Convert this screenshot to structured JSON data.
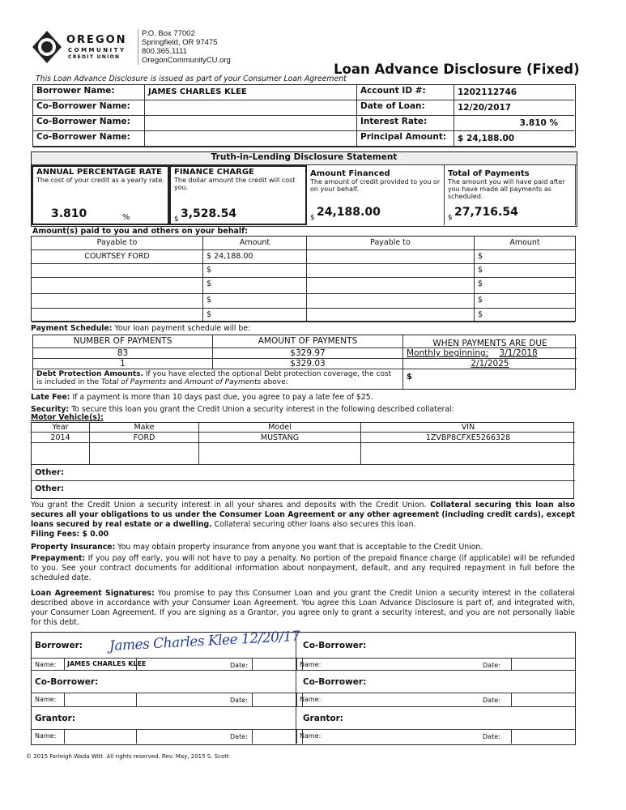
{
  "header": {
    "logo": {
      "line1": "OREGON",
      "line2": "COMMUNITY",
      "line3": "CREDIT UNION"
    },
    "address": [
      "P.O. Box 77002",
      "Springfield, OR 97475",
      "800.365.1111",
      "OregonCommunityCU.org"
    ],
    "title": "Loan Advance Disclosure (Fixed)",
    "subtitle": "This Loan Advance Disclosure is issued as part of your Consumer Loan Agreement"
  },
  "borrower": {
    "labels": [
      "Borrower Name:",
      "Co-Borrower Name:",
      "Co-Borrower Name:",
      "Co-Borrower Name:"
    ],
    "values": [
      "JAMES CHARLES KLEE",
      "",
      "",
      ""
    ],
    "right_labels": [
      "Account ID #:",
      "Date of Loan:",
      "Interest Rate:",
      "Principal Amount:"
    ],
    "right_values": [
      "1202112746",
      "12/20/2017",
      "3.810 %",
      "$ 24,188.00"
    ]
  },
  "til": {
    "title": "Truth-in-Lending Disclosure Statement",
    "boxes": [
      {
        "head": "ANNUAL PERCENTAGE RATE",
        "desc": "The cost of your credit as a yearly rate.",
        "value": "3.810",
        "unit": "%"
      },
      {
        "head": "FINANCE CHARGE",
        "desc": "The dollar amount the credit will cost you.",
        "value": "3,528.54",
        "unit": "$"
      },
      {
        "head": "Amount Financed",
        "desc": "The amount of credit provided to you or on your behalf.",
        "value": "24,188.00",
        "unit": "$"
      },
      {
        "head": "Total of Payments",
        "desc": "The amount you will have paid after you have made all payments as scheduled.",
        "value": "27,716.54",
        "unit": "$"
      }
    ]
  },
  "paid": {
    "label": "Amount(s) paid to you and others on your behalf:",
    "headers": [
      "Payable to",
      "Amount",
      "Payable to",
      "Amount"
    ],
    "rows": [
      [
        "COURTSEY FORD",
        "$ 24,188.00",
        "",
        "$"
      ],
      [
        "",
        "$",
        "",
        "$"
      ],
      [
        "",
        "$",
        "",
        "$"
      ],
      [
        "",
        "$",
        "",
        "$"
      ],
      [
        "",
        "$",
        "",
        "$"
      ]
    ]
  },
  "schedule": {
    "label": "Payment Schedule:",
    "label_text": "Your loan payment schedule will be:",
    "headers": [
      "NUMBER OF PAYMENTS",
      "AMOUNT OF PAYMENTS",
      "WHEN PAYMENTS ARE DUE"
    ],
    "rows": [
      [
        "83",
        "$329.97",
        "Monthly beginning:",
        "3/1/2018"
      ],
      [
        "1",
        "$329.03",
        "",
        "2/1/2025"
      ]
    ],
    "debt_bold": "Debt Protection Amounts.",
    "debt_text": " If you have elected the optional Debt protection coverage, the cost is included in the ",
    "debt_i1": "Total of Payments",
    "debt_and": " and ",
    "debt_i2": "Amount of Payments",
    "debt_end": " above:",
    "debt_value": "$"
  },
  "late_fee": {
    "label": "Late Fee:",
    "text": " If a payment is more than 10 days past due, you agree to pay a late fee of $25."
  },
  "security": {
    "label": "Security:",
    "text": " To secure this loan you grant the Credit Union  a security interest in the following described collateral:"
  },
  "vehicle": {
    "label": "Motor Vehicle(s):",
    "headers": [
      "Year",
      "Make",
      "Model",
      "VIN"
    ],
    "row": [
      "2014",
      "FORD",
      "MUSTANG",
      "1ZVBP8CFXE5266328"
    ],
    "other": [
      "Other:",
      "Other:"
    ]
  },
  "paragraphs": {
    "p1": "You grant the Credit Union a security interest in all your shares and deposits with the Credit Union. ",
    "p1b": "Collateral securing this loan also secures all your obligations to us under the Consumer Loan Agreement or any other agreement (including credit cards), except loans secured by real estate or a dwelling.",
    "p1c": " Collateral securing other loans also secures this loan.",
    "filing": "Filing Fees: $ 0.00",
    "ins_label": "Property Insurance:",
    "ins": "  You may obtain property insurance from anyone you want that is acceptable to the Credit Union.",
    "pre_label": "Prepayment:",
    "pre": " If you pay off early, you will not have to pay a penalty. No portion of the prepaid finance charge (if applicable) will be refunded to you. See your contract documents for additional information about nonpayment, default, and any required repayment in full before the scheduled date.",
    "sig_label": "Loan Agreement Signatures:",
    "sig": " You promise to pay this Consumer Loan and you grant the Credit Union a security interest in the collateral described above in accordance with your Consumer Loan Agreement. You agree this Loan Advance Disclosure is part of, and integrated with, your Consumer Loan Agreement. If you are signing as a Grantor, you agree only to grant a security interest, and you are not personally liable for this debt."
  },
  "signatures": {
    "left": [
      "Borrower:",
      "Co-Borrower:",
      "Grantor:"
    ],
    "right": [
      "Co-Borrower:",
      "Co-Borrower:",
      "Grantor:"
    ],
    "name_label": "Name:",
    "date_label": "Date:",
    "borrower_name": "JAMES CHARLES KLEE",
    "handwritten": "James Charles Klee 12/20/17"
  },
  "footer": "© 2015 Farleigh Wada Witt. All rights reserved. Rev. May, 2015 S. Scott"
}
